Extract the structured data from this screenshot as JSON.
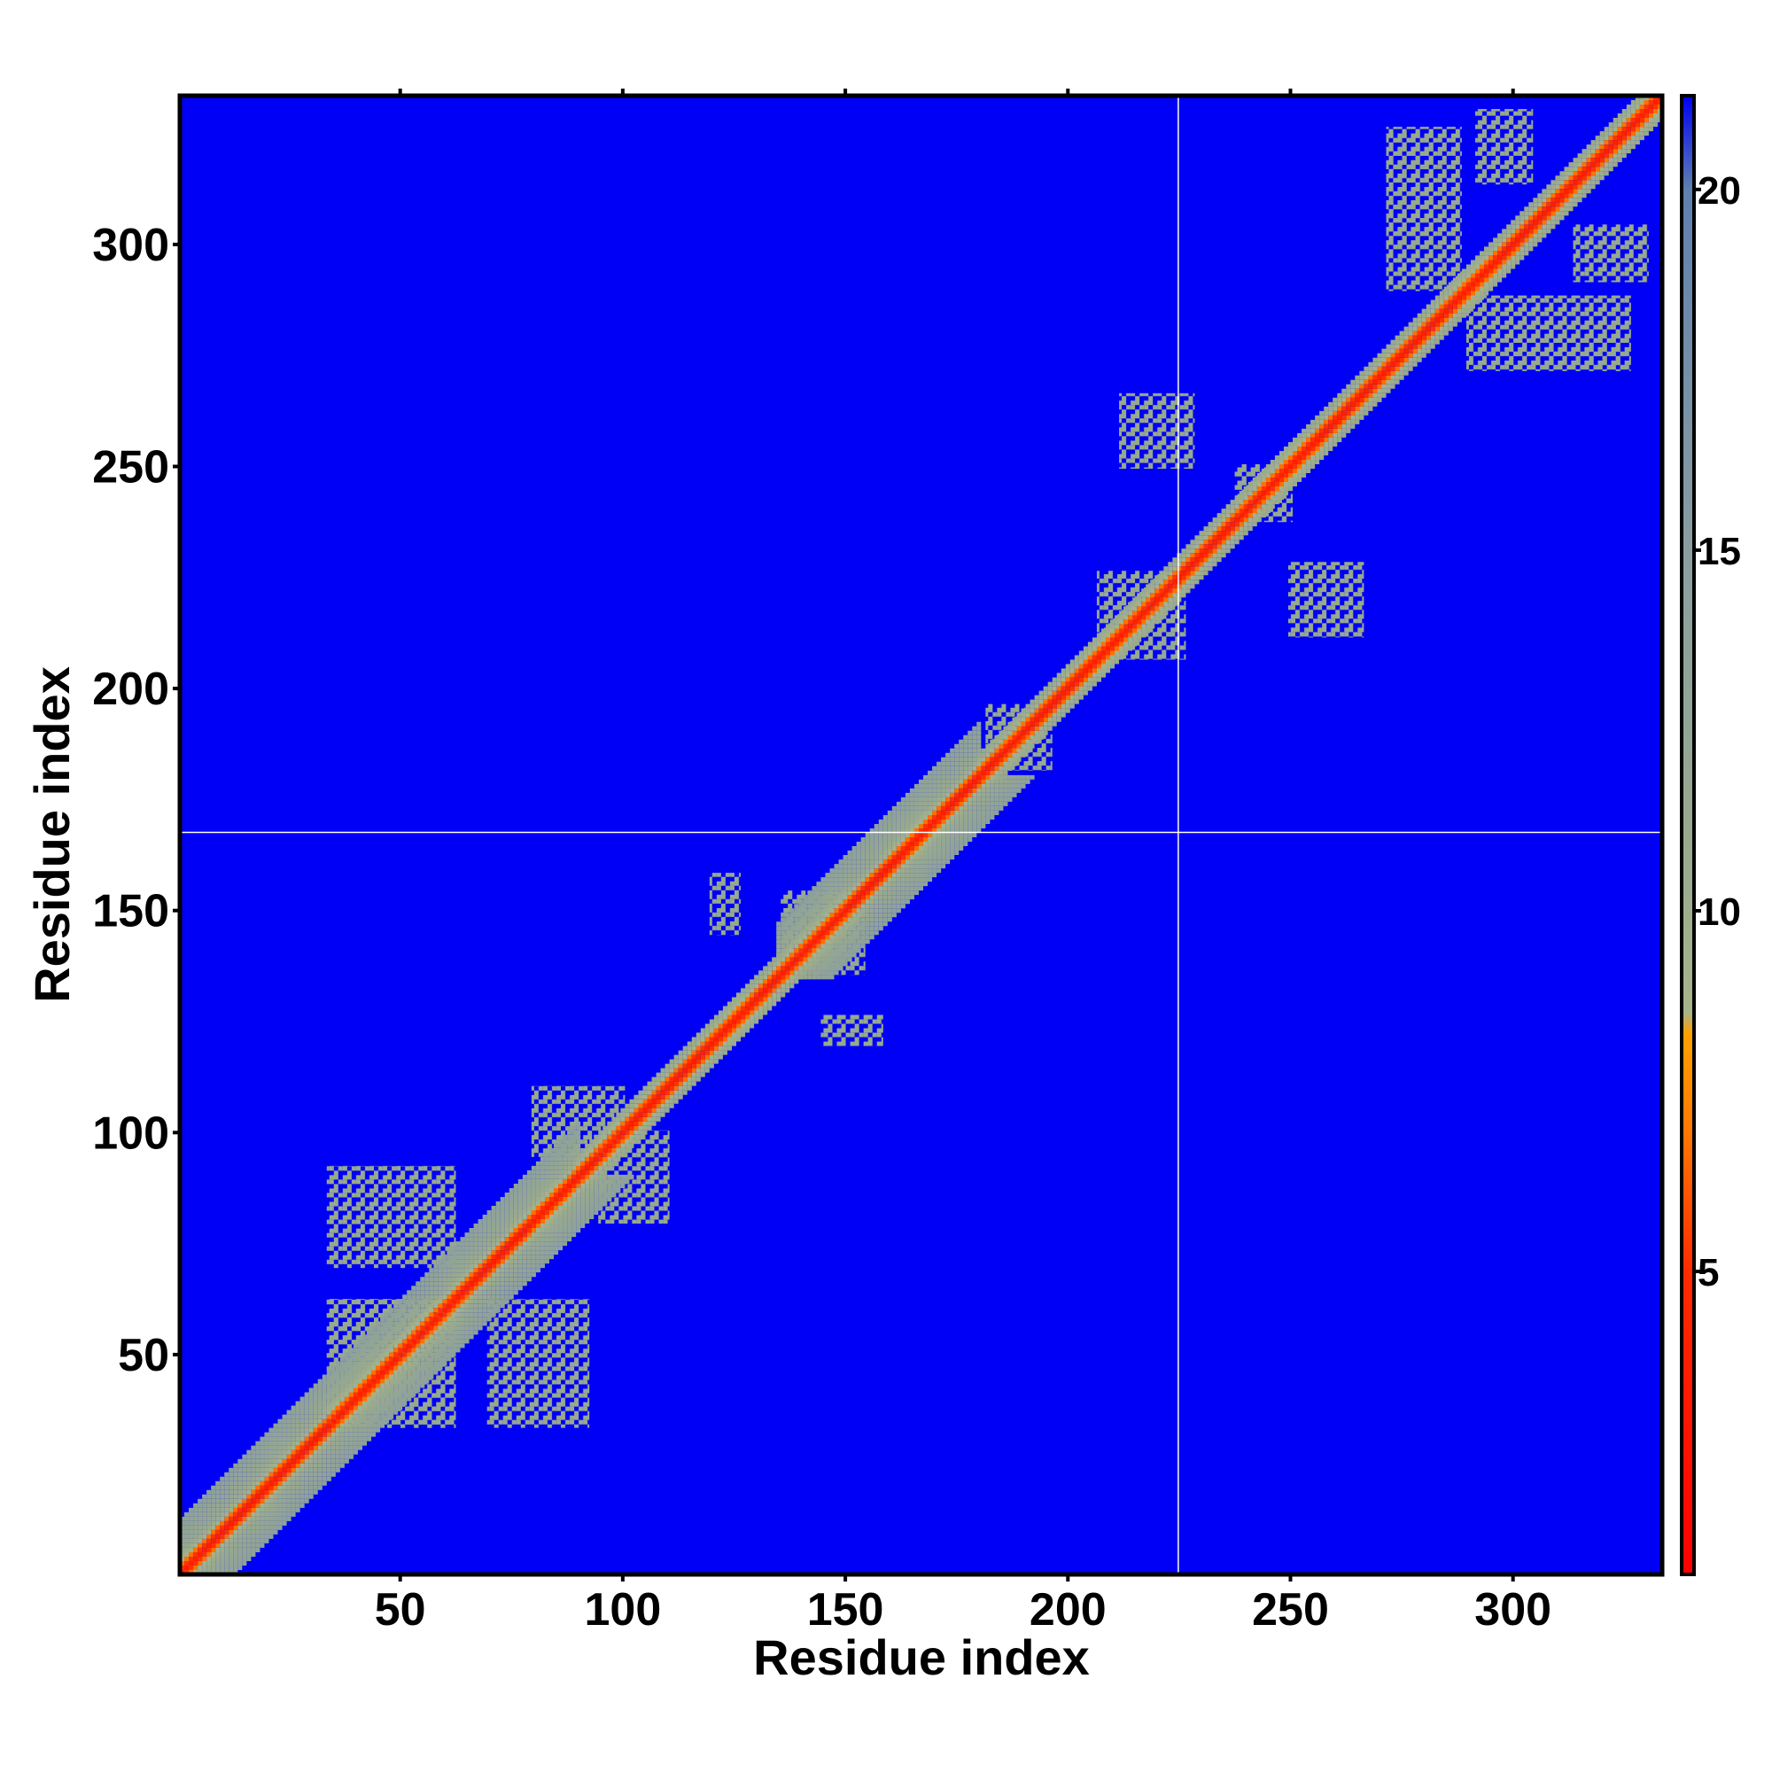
{
  "chart_data": {
    "type": "heatmap",
    "xlabel": "Residue index",
    "ylabel": "Residue index",
    "xlim": [
      0.5,
      333.5
    ],
    "ylim": [
      0.5,
      333.5
    ],
    "xticks": [
      50,
      100,
      150,
      200,
      250,
      300
    ],
    "yticks": [
      50,
      100,
      150,
      200,
      250,
      300
    ],
    "clim": [
      0.8,
      21.3
    ],
    "cticks": [
      5,
      10,
      15,
      20
    ],
    "colorscale": [
      [
        0.8,
        "#ff0000"
      ],
      [
        5,
        "#ff2a00"
      ],
      [
        7,
        "#ff7a00"
      ],
      [
        8.3,
        "#ffa000"
      ],
      [
        8.6,
        "#a6b48c"
      ],
      [
        11,
        "#98a98e"
      ],
      [
        15,
        "#8a9ea0"
      ],
      [
        20,
        "#5f7fae"
      ],
      [
        21.3,
        "#0000f6"
      ]
    ],
    "band": {
      "profile": [
        3.8,
        5.2,
        6.8,
        9,
        10.2,
        11,
        11.5,
        12,
        12.4,
        12.8,
        13.2,
        13.6,
        14
      ],
      "segments": [
        {
          "start": 1,
          "end": 90,
          "width": 12
        },
        {
          "start": 90,
          "end": 135,
          "width": 5
        },
        {
          "start": 135,
          "end": 180,
          "width": 12
        },
        {
          "start": 180,
          "end": 333,
          "width": 5
        }
      ]
    },
    "patches": [
      {
        "x": [
          34,
          62
        ],
        "y": [
          70,
          92
        ],
        "value": 11
      },
      {
        "x": [
          34,
          62
        ],
        "y": [
          34,
          62
        ],
        "value": 11
      },
      {
        "x": [
          80,
          100
        ],
        "y": [
          95,
          110
        ],
        "value": 11
      },
      {
        "x": [
          120,
          126
        ],
        "y": [
          145,
          158
        ],
        "value": 11
      },
      {
        "x": [
          136,
          150
        ],
        "y": [
          138,
          154
        ],
        "value": 11
      },
      {
        "x": [
          182,
          190
        ],
        "y": [
          186,
          196
        ],
        "value": 11
      },
      {
        "x": [
          207,
          223
        ],
        "y": [
          210,
          226
        ],
        "value": 11
      },
      {
        "x": [
          212,
          228
        ],
        "y": [
          250,
          266
        ],
        "value": 11
      },
      {
        "x": [
          238,
          250
        ],
        "y": [
          238,
          250
        ],
        "value": 11
      },
      {
        "x": [
          272,
          288
        ],
        "y": [
          290,
          326
        ],
        "value": 11
      },
      {
        "x": [
          292,
          304
        ],
        "y": [
          314,
          330
        ],
        "value": 11
      },
      {
        "x": [
          300,
          325
        ],
        "y": [
          272,
          282
        ],
        "value": 11
      }
    ],
    "crosshair": {
      "x": 224.8,
      "y": 167.6
    }
  }
}
